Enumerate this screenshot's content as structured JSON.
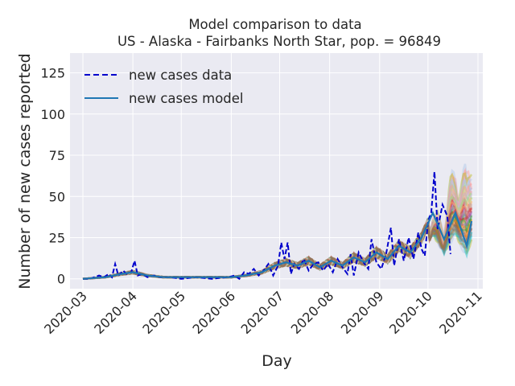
{
  "chart_data": {
    "type": "line",
    "title": "Model comparison to data",
    "subtitle": "US - Alaska - Fairbanks North Star, pop. = 96849",
    "xlabel": "Day",
    "ylabel": "Number of new cases reported",
    "xlim": [
      "2020-02-22",
      "2020-11-04"
    ],
    "ylim": [
      -6,
      137
    ],
    "x_ticks": [
      "2020-03",
      "2020-04",
      "2020-05",
      "2020-06",
      "2020-07",
      "2020-08",
      "2020-09",
      "2020-10",
      "2020-11"
    ],
    "y_ticks": [
      0,
      25,
      50,
      75,
      100,
      125
    ],
    "grid": true,
    "legend": {
      "placement": "top-left",
      "entries": [
        "new cases data",
        "new cases model"
      ]
    },
    "colors": {
      "plot_bg": "#eaeaf2",
      "grid": "#ffffff",
      "data_line": "#0000cc",
      "model_line": "#1f77b4",
      "ensemble": [
        "#aec7e8",
        "#ff9896",
        "#c5b0d5",
        "#98df8a",
        "#ffbb78",
        "#c49c94",
        "#d62728",
        "#9467bd",
        "#2ca02c",
        "#ff7f0e",
        "#8c564b",
        "#7f7f7f",
        "#17becf",
        "#bcbd22"
      ]
    },
    "series": [
      {
        "name": "new cases data",
        "style": "dashed",
        "points": [
          [
            "2020-03-01",
            0
          ],
          [
            "2020-03-05",
            0
          ],
          [
            "2020-03-08",
            1
          ],
          [
            "2020-03-11",
            2
          ],
          [
            "2020-03-14",
            1
          ],
          [
            "2020-03-17",
            3
          ],
          [
            "2020-03-19",
            1
          ],
          [
            "2020-03-21",
            9
          ],
          [
            "2020-03-23",
            2
          ],
          [
            "2020-03-26",
            5
          ],
          [
            "2020-03-28",
            3
          ],
          [
            "2020-03-31",
            4
          ],
          [
            "2020-04-02",
            11
          ],
          [
            "2020-04-04",
            2
          ],
          [
            "2020-04-07",
            3
          ],
          [
            "2020-04-10",
            1
          ],
          [
            "2020-04-14",
            2
          ],
          [
            "2020-04-18",
            1
          ],
          [
            "2020-04-24",
            1
          ],
          [
            "2020-05-01",
            0
          ],
          [
            "2020-05-10",
            1
          ],
          [
            "2020-05-20",
            0
          ],
          [
            "2020-05-30",
            1
          ],
          [
            "2020-06-03",
            2
          ],
          [
            "2020-06-06",
            0
          ],
          [
            "2020-06-09",
            4
          ],
          [
            "2020-06-12",
            3
          ],
          [
            "2020-06-15",
            6
          ],
          [
            "2020-06-18",
            2
          ],
          [
            "2020-06-21",
            5
          ],
          [
            "2020-06-24",
            9
          ],
          [
            "2020-06-27",
            2
          ],
          [
            "2020-06-30",
            8
          ],
          [
            "2020-07-02",
            22
          ],
          [
            "2020-07-04",
            12
          ],
          [
            "2020-07-06",
            22
          ],
          [
            "2020-07-08",
            3
          ],
          [
            "2020-07-10",
            9
          ],
          [
            "2020-07-13",
            6
          ],
          [
            "2020-07-16",
            12
          ],
          [
            "2020-07-19",
            5
          ],
          [
            "2020-07-22",
            9
          ],
          [
            "2020-07-25",
            10
          ],
          [
            "2020-07-28",
            5
          ],
          [
            "2020-07-31",
            9
          ],
          [
            "2020-08-03",
            4
          ],
          [
            "2020-08-06",
            12
          ],
          [
            "2020-08-09",
            7
          ],
          [
            "2020-08-12",
            3
          ],
          [
            "2020-08-14",
            15
          ],
          [
            "2020-08-16",
            2
          ],
          [
            "2020-08-19",
            16
          ],
          [
            "2020-08-22",
            10
          ],
          [
            "2020-08-25",
            6
          ],
          [
            "2020-08-27",
            24
          ],
          [
            "2020-08-30",
            10
          ],
          [
            "2020-09-02",
            6
          ],
          [
            "2020-09-05",
            15
          ],
          [
            "2020-09-08",
            31
          ],
          [
            "2020-09-10",
            8
          ],
          [
            "2020-09-13",
            24
          ],
          [
            "2020-09-16",
            11
          ],
          [
            "2020-09-19",
            25
          ],
          [
            "2020-09-22",
            12
          ],
          [
            "2020-09-25",
            28
          ],
          [
            "2020-09-27",
            18
          ],
          [
            "2020-09-29",
            14
          ],
          [
            "2020-10-01",
            35
          ],
          [
            "2020-10-03",
            40
          ],
          [
            "2020-10-05",
            65
          ],
          [
            "2020-10-07",
            30
          ],
          [
            "2020-10-10",
            45
          ],
          [
            "2020-10-13",
            38
          ],
          [
            "2020-10-15",
            15
          ]
        ]
      },
      {
        "name": "new cases model",
        "style": "solid",
        "points": [
          [
            "2020-03-01",
            0
          ],
          [
            "2020-03-15",
            1
          ],
          [
            "2020-03-25",
            3
          ],
          [
            "2020-04-01",
            4
          ],
          [
            "2020-04-10",
            2
          ],
          [
            "2020-04-20",
            1
          ],
          [
            "2020-05-01",
            1
          ],
          [
            "2020-05-15",
            1
          ],
          [
            "2020-06-01",
            1
          ],
          [
            "2020-06-10",
            2
          ],
          [
            "2020-06-20",
            4
          ],
          [
            "2020-06-28",
            8
          ],
          [
            "2020-07-05",
            10
          ],
          [
            "2020-07-12",
            8
          ],
          [
            "2020-07-19",
            11
          ],
          [
            "2020-07-26",
            7
          ],
          [
            "2020-08-02",
            11
          ],
          [
            "2020-08-09",
            8
          ],
          [
            "2020-08-16",
            13
          ],
          [
            "2020-08-23",
            10
          ],
          [
            "2020-08-30",
            16
          ],
          [
            "2020-09-06",
            12
          ],
          [
            "2020-09-13",
            20
          ],
          [
            "2020-09-20",
            16
          ],
          [
            "2020-09-27",
            25
          ],
          [
            "2020-10-04",
            40
          ],
          [
            "2020-10-11",
            24
          ],
          [
            "2020-10-18",
            40
          ],
          [
            "2020-10-25",
            20
          ],
          [
            "2020-10-28",
            35
          ]
        ]
      }
    ]
  }
}
